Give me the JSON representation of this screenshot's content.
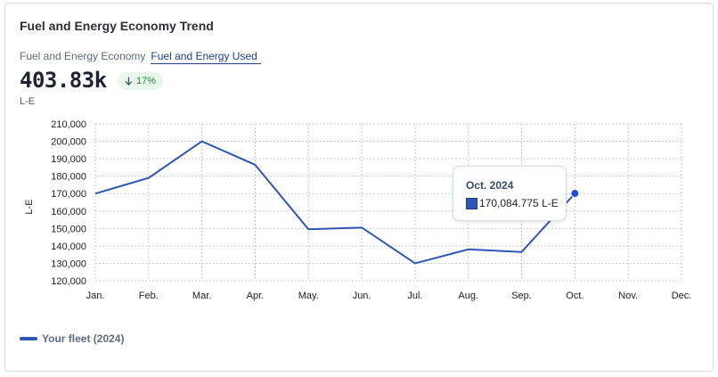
{
  "header": {
    "title": "Fuel and Energy Economy Trend",
    "tabs": [
      {
        "label": "Fuel and Energy Economy",
        "active": false
      },
      {
        "label": "Fuel and Energy Used",
        "active": true
      }
    ],
    "value": "403.83k",
    "delta": {
      "direction": "down",
      "text": "17%"
    },
    "unit": "L-E"
  },
  "tooltip": {
    "title": "Oct. 2024",
    "value": "170,084.775 L-E"
  },
  "chart_data": {
    "type": "line",
    "categories": [
      "Jan.",
      "Feb.",
      "Mar.",
      "Apr.",
      "May.",
      "Jun.",
      "Jul.",
      "Aug.",
      "Sep.",
      "Oct.",
      "Nov.",
      "Dec."
    ],
    "series": [
      {
        "name": "Your fleet (2024)",
        "color": "#2f56b5",
        "values": [
          170000,
          179000,
          200000,
          186500,
          149500,
          150500,
          130000,
          138000,
          136500,
          170085,
          null,
          null
        ]
      }
    ],
    "ylabel": "L-E",
    "ylim": [
      120000,
      210000
    ],
    "yticks": [
      "120,000",
      "130,000",
      "140,000",
      "150,000",
      "160,000",
      "170,000",
      "180,000",
      "190,000",
      "200,000",
      "210,000"
    ],
    "grid": true,
    "legend_position": "bottom-left",
    "highlight_index": 9
  }
}
